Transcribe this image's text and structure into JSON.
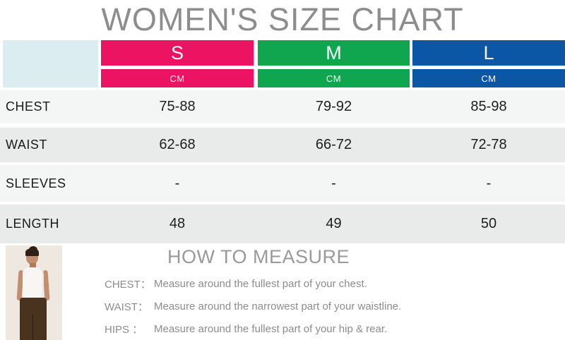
{
  "title": "WOMEN'S SIZE CHART",
  "colors": {
    "size_s_pink": "#EC1362",
    "size_m_green": "#10A64F",
    "size_l_blue": "#0C56A6",
    "corner_cell_cyan": "#DCEDF2",
    "row_alt_light": "#F4F5F5",
    "row_alt_dark": "#E9EAEA",
    "title_gray": "#8D8D8D"
  },
  "chart_data": {
    "type": "table",
    "title": "WOMEN'S SIZE CHART",
    "columns": [
      {
        "size": "S",
        "unit": "CM"
      },
      {
        "size": "M",
        "unit": "CM"
      },
      {
        "size": "L",
        "unit": "CM"
      }
    ],
    "rows": [
      {
        "label": "CHEST",
        "values": [
          "75-88",
          "79-92",
          "85-98"
        ]
      },
      {
        "label": "WAIST",
        "values": [
          "62-68",
          "66-72",
          "72-78"
        ]
      },
      {
        "label": "SLEEVES",
        "values": [
          "-",
          "-",
          "-"
        ]
      },
      {
        "label": "LENGTH",
        "values": [
          "48",
          "49",
          "50"
        ]
      }
    ]
  },
  "how_to_measure": {
    "title": "HOW TO MEASURE",
    "items": [
      {
        "label": "CHEST：",
        "text": "Measure around the fullest part of your chest."
      },
      {
        "label": "WAIST：",
        "text": "Measure around the narrowest part of your waistline."
      },
      {
        "label": "HIPS ：",
        "text": "Measure around the fullest part of your hip & rear."
      }
    ]
  }
}
